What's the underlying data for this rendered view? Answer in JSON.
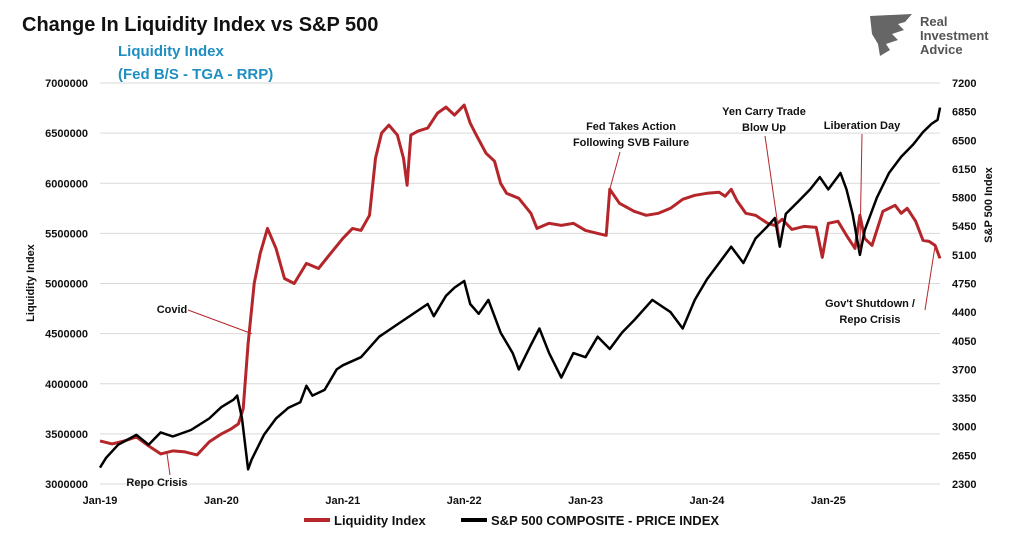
{
  "title": "Change In Liquidity Index vs S&P 500",
  "subtitle_line1": "Liquidity Index",
  "subtitle_line2": "(Fed B/S - TGA - RRP)",
  "logo": [
    "Real",
    "Investment",
    "Advice"
  ],
  "colors": {
    "liquidity": "#b5262b",
    "sp500": "#000000",
    "subtitle": "#1f8fc1"
  },
  "chart_data": {
    "type": "line",
    "xlabel": "",
    "x_ticks": [
      "Jan-19",
      "Jan-20",
      "Jan-21",
      "Jan-22",
      "Jan-23",
      "Jan-24",
      "Jan-25"
    ],
    "x_range": [
      2019.0,
      2025.92
    ],
    "left_axis": {
      "label": "Liquidity Index",
      "range": [
        3000000,
        7000000
      ],
      "ticks": [
        "3000000",
        "3500000",
        "4000000",
        "4500000",
        "5000000",
        "5500000",
        "6000000",
        "6500000",
        "7000000"
      ]
    },
    "right_axis": {
      "label": "S&P 500 Index",
      "range": [
        2300,
        7200
      ],
      "ticks": [
        "2300",
        "2650",
        "3000",
        "3350",
        "3700",
        "4050",
        "4400",
        "4750",
        "5100",
        "5450",
        "5800",
        "6150",
        "6500",
        "6850",
        "7200"
      ]
    },
    "grid": "horizontal",
    "legend_position": "bottom",
    "series": [
      {
        "name": "Liquidity Index",
        "axis": "left",
        "points": [
          [
            2019.0,
            3430000
          ],
          [
            2019.1,
            3400000
          ],
          [
            2019.2,
            3430000
          ],
          [
            2019.3,
            3470000
          ],
          [
            2019.4,
            3380000
          ],
          [
            2019.5,
            3300000
          ],
          [
            2019.6,
            3330000
          ],
          [
            2019.7,
            3320000
          ],
          [
            2019.8,
            3290000
          ],
          [
            2019.9,
            3420000
          ],
          [
            2020.0,
            3500000
          ],
          [
            2020.08,
            3550000
          ],
          [
            2020.14,
            3600000
          ],
          [
            2020.18,
            3750000
          ],
          [
            2020.22,
            4400000
          ],
          [
            2020.27,
            5000000
          ],
          [
            2020.32,
            5300000
          ],
          [
            2020.38,
            5550000
          ],
          [
            2020.45,
            5350000
          ],
          [
            2020.52,
            5050000
          ],
          [
            2020.6,
            5000000
          ],
          [
            2020.7,
            5200000
          ],
          [
            2020.8,
            5150000
          ],
          [
            2020.9,
            5300000
          ],
          [
            2021.0,
            5450000
          ],
          [
            2021.08,
            5550000
          ],
          [
            2021.15,
            5530000
          ],
          [
            2021.22,
            5680000
          ],
          [
            2021.27,
            6250000
          ],
          [
            2021.32,
            6500000
          ],
          [
            2021.38,
            6580000
          ],
          [
            2021.45,
            6480000
          ],
          [
            2021.5,
            6250000
          ],
          [
            2021.53,
            5980000
          ],
          [
            2021.56,
            6480000
          ],
          [
            2021.62,
            6520000
          ],
          [
            2021.7,
            6550000
          ],
          [
            2021.78,
            6700000
          ],
          [
            2021.85,
            6760000
          ],
          [
            2021.92,
            6680000
          ],
          [
            2022.0,
            6780000
          ],
          [
            2022.05,
            6600000
          ],
          [
            2022.1,
            6480000
          ],
          [
            2022.18,
            6300000
          ],
          [
            2022.25,
            6220000
          ],
          [
            2022.3,
            6000000
          ],
          [
            2022.35,
            5900000
          ],
          [
            2022.45,
            5850000
          ],
          [
            2022.55,
            5700000
          ],
          [
            2022.6,
            5550000
          ],
          [
            2022.7,
            5600000
          ],
          [
            2022.8,
            5580000
          ],
          [
            2022.9,
            5600000
          ],
          [
            2023.0,
            5530000
          ],
          [
            2023.1,
            5500000
          ],
          [
            2023.17,
            5480000
          ],
          [
            2023.2,
            5940000
          ],
          [
            2023.28,
            5800000
          ],
          [
            2023.4,
            5720000
          ],
          [
            2023.5,
            5680000
          ],
          [
            2023.6,
            5700000
          ],
          [
            2023.7,
            5750000
          ],
          [
            2023.8,
            5840000
          ],
          [
            2023.9,
            5880000
          ],
          [
            2024.0,
            5900000
          ],
          [
            2024.1,
            5910000
          ],
          [
            2024.15,
            5870000
          ],
          [
            2024.2,
            5940000
          ],
          [
            2024.25,
            5820000
          ],
          [
            2024.32,
            5700000
          ],
          [
            2024.4,
            5680000
          ],
          [
            2024.5,
            5600000
          ],
          [
            2024.56,
            5580000
          ],
          [
            2024.62,
            5640000
          ],
          [
            2024.7,
            5540000
          ],
          [
            2024.8,
            5570000
          ],
          [
            2024.9,
            5560000
          ],
          [
            2024.95,
            5260000
          ],
          [
            2025.0,
            5600000
          ],
          [
            2025.08,
            5620000
          ],
          [
            2025.15,
            5480000
          ],
          [
            2025.22,
            5350000
          ],
          [
            2025.26,
            5680000
          ],
          [
            2025.3,
            5450000
          ],
          [
            2025.36,
            5380000
          ],
          [
            2025.45,
            5720000
          ],
          [
            2025.55,
            5780000
          ],
          [
            2025.6,
            5700000
          ],
          [
            2025.65,
            5750000
          ],
          [
            2025.72,
            5620000
          ],
          [
            2025.78,
            5430000
          ],
          [
            2025.83,
            5420000
          ],
          [
            2025.88,
            5380000
          ],
          [
            2025.92,
            5250000
          ]
        ]
      },
      {
        "name": "S&P 500 COMPOSITE - PRICE INDEX",
        "axis": "right",
        "points": [
          [
            2019.0,
            2500
          ],
          [
            2019.05,
            2620
          ],
          [
            2019.15,
            2780
          ],
          [
            2019.3,
            2900
          ],
          [
            2019.4,
            2780
          ],
          [
            2019.5,
            2930
          ],
          [
            2019.6,
            2880
          ],
          [
            2019.75,
            2960
          ],
          [
            2019.9,
            3100
          ],
          [
            2020.0,
            3240
          ],
          [
            2020.1,
            3330
          ],
          [
            2020.13,
            3380
          ],
          [
            2020.17,
            3100
          ],
          [
            2020.22,
            2480
          ],
          [
            2020.25,
            2600
          ],
          [
            2020.35,
            2900
          ],
          [
            2020.45,
            3100
          ],
          [
            2020.55,
            3230
          ],
          [
            2020.65,
            3300
          ],
          [
            2020.7,
            3500
          ],
          [
            2020.75,
            3380
          ],
          [
            2020.85,
            3450
          ],
          [
            2020.95,
            3700
          ],
          [
            2021.0,
            3750
          ],
          [
            2021.15,
            3850
          ],
          [
            2021.3,
            4100
          ],
          [
            2021.45,
            4250
          ],
          [
            2021.6,
            4400
          ],
          [
            2021.7,
            4500
          ],
          [
            2021.75,
            4350
          ],
          [
            2021.85,
            4600
          ],
          [
            2021.92,
            4700
          ],
          [
            2022.0,
            4780
          ],
          [
            2022.05,
            4500
          ],
          [
            2022.12,
            4380
          ],
          [
            2022.2,
            4550
          ],
          [
            2022.3,
            4150
          ],
          [
            2022.4,
            3900
          ],
          [
            2022.45,
            3700
          ],
          [
            2022.55,
            4000
          ],
          [
            2022.62,
            4200
          ],
          [
            2022.7,
            3900
          ],
          [
            2022.8,
            3600
          ],
          [
            2022.9,
            3900
          ],
          [
            2023.0,
            3850
          ],
          [
            2023.1,
            4100
          ],
          [
            2023.2,
            3950
          ],
          [
            2023.3,
            4150
          ],
          [
            2023.4,
            4300
          ],
          [
            2023.55,
            4550
          ],
          [
            2023.6,
            4500
          ],
          [
            2023.7,
            4400
          ],
          [
            2023.8,
            4200
          ],
          [
            2023.9,
            4550
          ],
          [
            2024.0,
            4800
          ],
          [
            2024.1,
            5000
          ],
          [
            2024.2,
            5200
          ],
          [
            2024.3,
            5000
          ],
          [
            2024.4,
            5300
          ],
          [
            2024.5,
            5450
          ],
          [
            2024.56,
            5550
          ],
          [
            2024.6,
            5200
          ],
          [
            2024.65,
            5600
          ],
          [
            2024.75,
            5750
          ],
          [
            2024.85,
            5900
          ],
          [
            2024.93,
            6050
          ],
          [
            2025.0,
            5900
          ],
          [
            2025.1,
            6100
          ],
          [
            2025.15,
            5900
          ],
          [
            2025.2,
            5600
          ],
          [
            2025.26,
            5100
          ],
          [
            2025.3,
            5400
          ],
          [
            2025.4,
            5800
          ],
          [
            2025.5,
            6100
          ],
          [
            2025.6,
            6300
          ],
          [
            2025.7,
            6450
          ],
          [
            2025.78,
            6600
          ],
          [
            2025.85,
            6700
          ],
          [
            2025.9,
            6750
          ],
          [
            2025.92,
            6900
          ]
        ]
      }
    ],
    "annotations": [
      {
        "text": "Covid",
        "x": 2020.25,
        "y": 4500000,
        "axis": "left"
      },
      {
        "text": "Repo Crisis",
        "x": 2019.55,
        "y": 3320000,
        "axis": "left"
      },
      {
        "lines": [
          "Fed Takes Action",
          "Following SVB Failure"
        ],
        "x": 2023.2,
        "y": 5940000,
        "axis": "left"
      },
      {
        "lines": [
          "Yen Carry Trade",
          "Blow Up"
        ],
        "x": 2024.6,
        "y": 5300,
        "axis": "right"
      },
      {
        "text": "Liberation Day",
        "x": 2025.26,
        "y": 5150,
        "axis": "right"
      },
      {
        "lines": [
          "Gov't Shutdown /",
          "Repo Crisis"
        ],
        "x": 2025.88,
        "y": 5380000,
        "axis": "left"
      }
    ]
  },
  "legend": [
    "Liquidity Index",
    "S&P 500 COMPOSITE - PRICE INDEX"
  ]
}
